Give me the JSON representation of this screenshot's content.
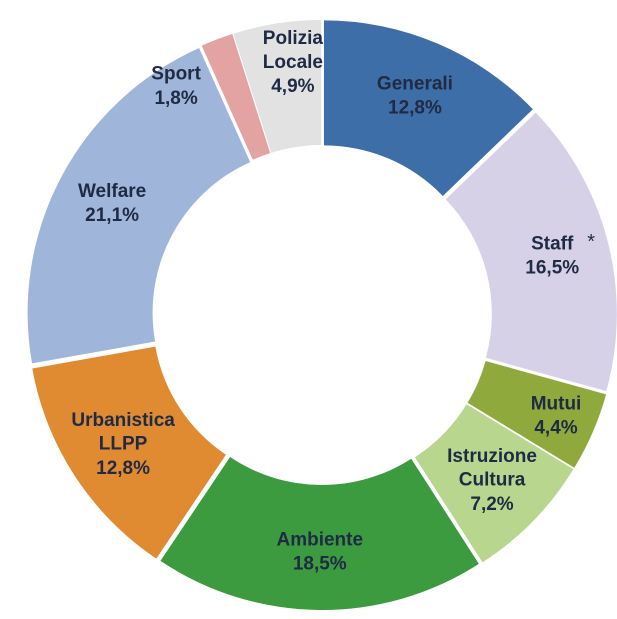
{
  "chart_data": {
    "type": "donut",
    "categories": [
      "Generali",
      "Staff",
      "Mutui",
      "Istruzione Cultura",
      "Ambiente",
      "Urbanistica LLPP",
      "Welfare",
      "Sport",
      "Polizia Locale"
    ],
    "values": [
      12.8,
      16.5,
      4.4,
      7.2,
      18.5,
      12.8,
      21.1,
      1.8,
      4.9
    ],
    "value_labels": [
      "12,8%",
      "16,5%",
      "4,4%",
      "7,2%",
      "18,5%",
      "12,8%",
      "21,1%",
      "1,8%",
      "4,9%"
    ],
    "colors": [
      "#3e6ea8",
      "#d6d1e6",
      "#8fa93c",
      "#b8d68e",
      "#3b9b3e",
      "#e08a32",
      "#9fb5d9",
      "#e3a3a3",
      "#e2e2e2"
    ],
    "annotation": "*"
  }
}
